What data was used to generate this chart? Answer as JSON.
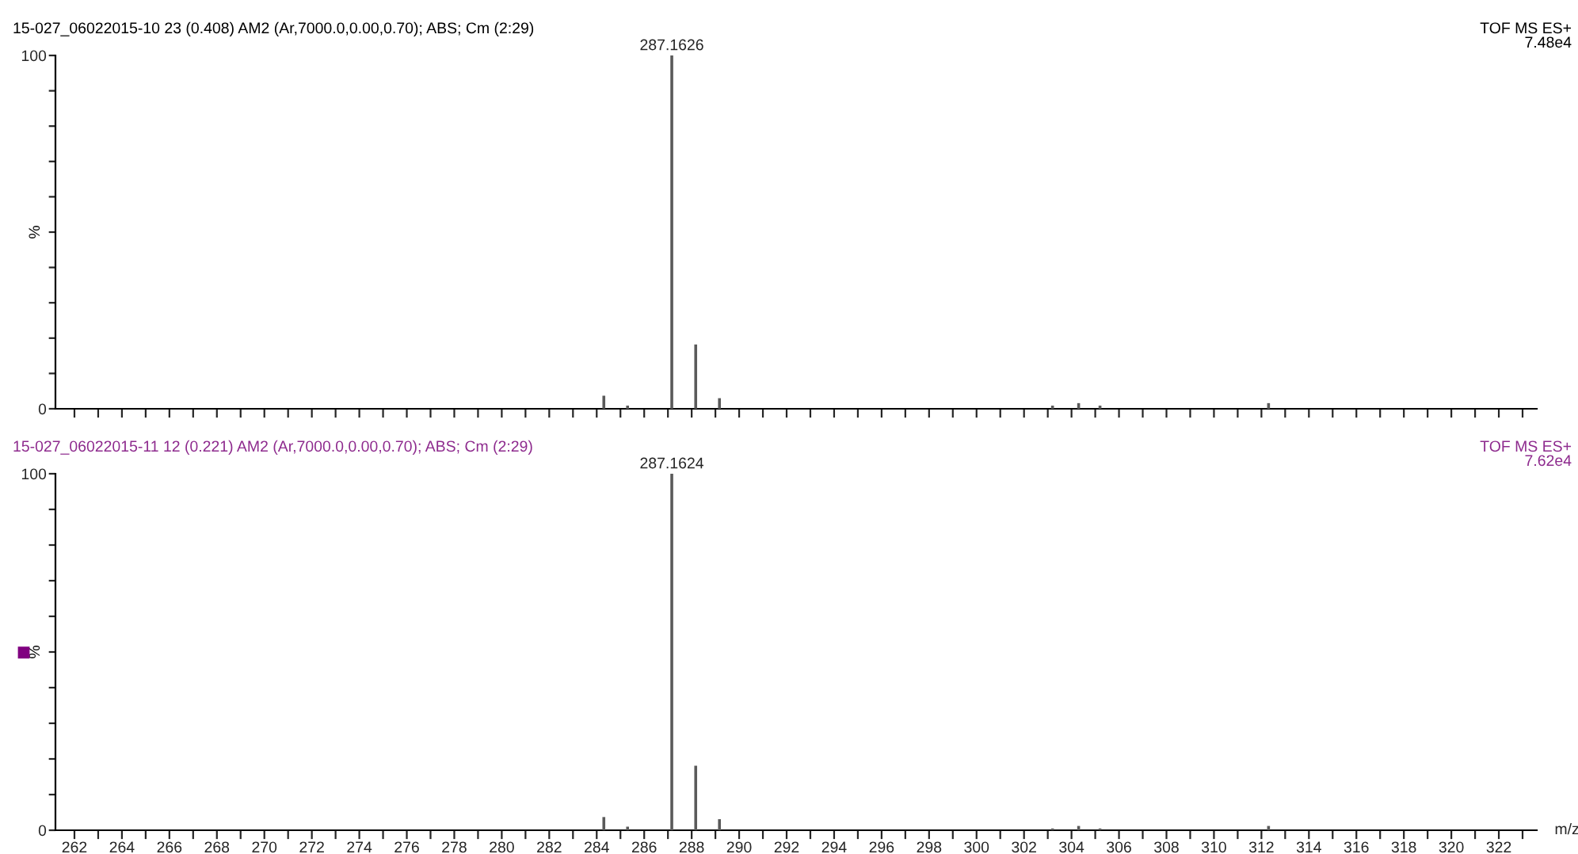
{
  "chart_data": [
    {
      "type": "bar",
      "title": "15-027_06022015-10 23 (0.408) AM2 (Ar,7000.0,0.00,0.70); ABS; Cm (2:29)",
      "ylabel": "%",
      "x": [
        284.3,
        285.3,
        287.1626,
        288.17,
        289.17,
        303.2,
        304.3,
        305.2,
        312.3
      ],
      "values": [
        3.7,
        0.9,
        100,
        18.2,
        3.0,
        0.9,
        1.6,
        0.9,
        1.6
      ],
      "color": "#5a5a5a",
      "annotations": [
        "TOF MS ES+",
        "7.48e4",
        {
          "text": "287.1626",
          "x": 287.1626,
          "y": 100
        }
      ],
      "xlim": [
        261.2,
        323.6
      ],
      "ylim": [
        0,
        100
      ],
      "xticks": [
        262,
        {
          "value": 263,
          "label": null
        },
        264,
        {
          "value": 265,
          "label": null
        },
        266,
        {
          "value": 267,
          "label": null
        },
        268,
        {
          "value": 269,
          "label": null
        },
        270,
        {
          "value": 271,
          "label": null
        },
        272,
        {
          "value": 273,
          "label": null
        },
        274,
        {
          "value": 275,
          "label": null
        },
        276,
        {
          "value": 277,
          "label": null
        },
        278,
        {
          "value": 279,
          "label": null
        },
        280,
        {
          "value": 281,
          "label": null
        },
        282,
        {
          "value": 283,
          "label": null
        },
        284,
        {
          "value": 285,
          "label": null
        },
        286,
        {
          "value": 287,
          "label": null
        },
        288,
        {
          "value": 289,
          "label": null
        },
        290,
        {
          "value": 291,
          "label": null
        },
        292,
        {
          "value": 293,
          "label": null
        },
        294,
        {
          "value": 295,
          "label": null
        },
        296,
        {
          "value": 297,
          "label": null
        },
        298,
        {
          "value": 299,
          "label": null
        },
        300,
        {
          "value": 301,
          "label": null
        },
        302,
        {
          "value": 303,
          "label": null
        },
        304,
        {
          "value": 305,
          "label": null
        },
        306,
        {
          "value": 307,
          "label": null
        },
        308,
        {
          "value": 309,
          "label": null
        },
        310,
        {
          "value": 311,
          "label": null
        },
        312,
        {
          "value": 313,
          "label": null
        },
        314,
        {
          "value": 315,
          "label": null
        },
        316,
        {
          "value": 317,
          "label": null
        },
        318,
        {
          "value": 319,
          "label": null
        },
        320,
        {
          "value": 321,
          "label": null
        },
        322,
        {
          "value": 323,
          "label": null
        }
      ],
      "yticks": [
        0,
        {
          "value": 10,
          "label": null
        },
        {
          "value": 20,
          "label": null
        },
        {
          "value": 30,
          "label": null
        },
        {
          "value": 40,
          "label": null
        },
        {
          "value": 50,
          "label": null
        },
        {
          "value": 60,
          "label": null
        },
        {
          "value": 70,
          "label": null
        },
        {
          "value": 80,
          "label": null
        },
        {
          "value": 90,
          "label": null
        },
        100
      ],
      "tick_labels": "y",
      "grid": false,
      "legend": false
    },
    {
      "type": "bar",
      "title": "15-027_06022015-11 12 (0.221) AM2 (Ar,7000.0,0.00,0.70); ABS; Cm (2:29)",
      "ylabel": "%",
      "xlabel": "m/z",
      "x": [
        284.3,
        285.3,
        287.1624,
        288.17,
        289.17,
        303.2,
        304.3,
        305.2,
        312.3
      ],
      "values": [
        3.7,
        1.0,
        100,
        18.1,
        3.1,
        0.5,
        1.2,
        0.5,
        1.2
      ],
      "color": "#5a5a5a",
      "annotations": [
        "TOF MS ES+",
        "7.62e4",
        {
          "text": "287.1624",
          "x": 287.1624,
          "y": 100
        }
      ],
      "xlim": [
        261.2,
        323.6
      ],
      "ylim": [
        0,
        100
      ],
      "xticks": [
        262,
        {
          "value": 263,
          "label": null
        },
        264,
        {
          "value": 265,
          "label": null
        },
        266,
        {
          "value": 267,
          "label": null
        },
        268,
        {
          "value": 269,
          "label": null
        },
        270,
        {
          "value": 271,
          "label": null
        },
        272,
        {
          "value": 273,
          "label": null
        },
        274,
        {
          "value": 275,
          "label": null
        },
        276,
        {
          "value": 277,
          "label": null
        },
        278,
        {
          "value": 279,
          "label": null
        },
        280,
        {
          "value": 281,
          "label": null
        },
        282,
        {
          "value": 283,
          "label": null
        },
        284,
        {
          "value": 285,
          "label": null
        },
        286,
        {
          "value": 287,
          "label": null
        },
        288,
        {
          "value": 289,
          "label": null
        },
        290,
        {
          "value": 291,
          "label": null
        },
        292,
        {
          "value": 293,
          "label": null
        },
        294,
        {
          "value": 295,
          "label": null
        },
        296,
        {
          "value": 297,
          "label": null
        },
        298,
        {
          "value": 299,
          "label": null
        },
        300,
        {
          "value": 301,
          "label": null
        },
        302,
        {
          "value": 303,
          "label": null
        },
        304,
        {
          "value": 305,
          "label": null
        },
        306,
        {
          "value": 307,
          "label": null
        },
        308,
        {
          "value": 309,
          "label": null
        },
        310,
        {
          "value": 311,
          "label": null
        },
        312,
        {
          "value": 313,
          "label": null
        },
        314,
        {
          "value": 315,
          "label": null
        },
        316,
        {
          "value": 317,
          "label": null
        },
        318,
        {
          "value": 319,
          "label": null
        },
        320,
        {
          "value": 321,
          "label": null
        },
        322,
        {
          "value": 323,
          "label": null
        }
      ],
      "yticks": [
        0,
        {
          "value": 10,
          "label": null
        },
        {
          "value": 20,
          "label": null
        },
        {
          "value": 30,
          "label": null
        },
        {
          "value": 40,
          "label": null
        },
        {
          "value": 50,
          "label": null
        },
        {
          "value": 60,
          "label": null
        },
        {
          "value": 70,
          "label": null
        },
        {
          "value": 80,
          "label": null
        },
        {
          "value": 90,
          "label": null
        },
        100
      ],
      "grid": false,
      "legend": false
    }
  ]
}
